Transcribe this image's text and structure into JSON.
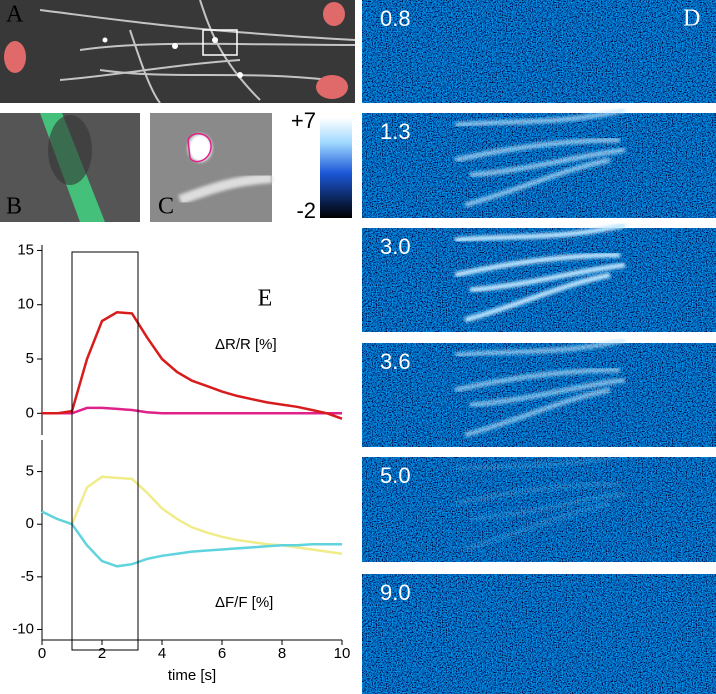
{
  "figure": {
    "panels": {
      "a": "A",
      "b": "B",
      "c": "C",
      "d": "D",
      "e": "E"
    },
    "colorbar": {
      "max": "+7",
      "min": "-2"
    },
    "frames": [
      "0.8",
      "1.3",
      "3.0",
      "3.6",
      "5.0",
      "9.0"
    ]
  },
  "chart_data": [
    {
      "type": "line",
      "annotation": "ΔR/R  [%]",
      "x": [
        0,
        0.5,
        1,
        1.5,
        2,
        2.5,
        3,
        3.5,
        4,
        4.5,
        5,
        5.5,
        6,
        6.5,
        7,
        7.5,
        8,
        8.5,
        9,
        9.5,
        10
      ],
      "xlim": [
        0,
        10
      ],
      "ylim": [
        -2,
        15.5
      ],
      "yticks": [
        0,
        5,
        10,
        15
      ],
      "window": [
        1,
        3.2
      ],
      "series": [
        {
          "color": "#e0218a",
          "values": [
            0,
            0,
            0,
            0.5,
            0.5,
            0.4,
            0.3,
            0.1,
            0,
            0,
            0,
            0,
            0,
            0,
            0,
            0,
            0,
            0,
            0,
            0,
            0
          ]
        },
        {
          "color": "#d81c1c",
          "values": [
            0,
            0,
            0.2,
            5,
            8.5,
            9.3,
            9.2,
            7,
            5,
            3.8,
            3,
            2.5,
            2,
            1.6,
            1.3,
            1,
            0.8,
            0.6,
            0.3,
            0,
            -0.5
          ]
        }
      ]
    },
    {
      "type": "line",
      "annotation": "ΔF/F  [%]",
      "xlabel": "time [s]",
      "x": [
        0,
        0.5,
        1,
        1.5,
        2,
        2.5,
        3,
        3.5,
        4,
        4.5,
        5,
        5.5,
        6,
        6.5,
        7,
        7.5,
        8,
        8.5,
        9,
        9.5,
        10
      ],
      "xlim": [
        0,
        10
      ],
      "ylim": [
        -11,
        8
      ],
      "yticks": [
        -10,
        -5,
        0,
        5
      ],
      "xticks": [
        0,
        2,
        4,
        6,
        8,
        10
      ],
      "series": [
        {
          "color": "#f0ec8a",
          "values": [
            1.2,
            0.5,
            0,
            3.5,
            4.5,
            4.4,
            4.3,
            3,
            1.5,
            0.5,
            -0.3,
            -0.8,
            -1.2,
            -1.5,
            -1.7,
            -1.9,
            -2,
            -2.2,
            -2.4,
            -2.6,
            -2.8
          ]
        },
        {
          "color": "#5fd3de",
          "values": [
            1.2,
            0.5,
            0,
            -2,
            -3.5,
            -4,
            -3.8,
            -3.3,
            -3,
            -2.8,
            -2.6,
            -2.5,
            -2.4,
            -2.3,
            -2.2,
            -2.1,
            -2,
            -2,
            -1.9,
            -1.9,
            -1.9
          ]
        }
      ]
    }
  ]
}
